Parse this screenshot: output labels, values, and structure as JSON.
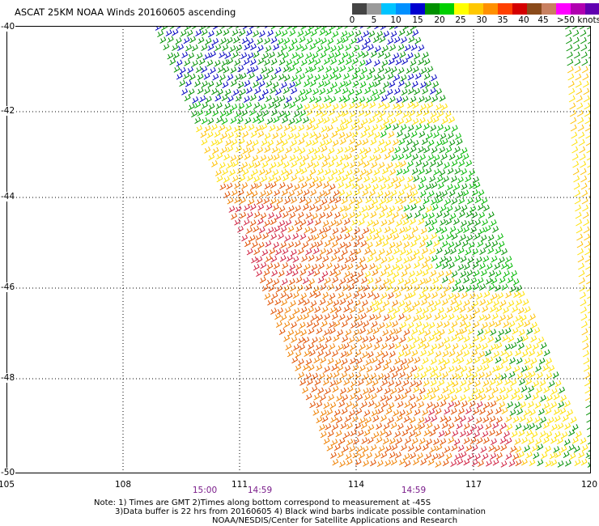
{
  "title": "ASCAT 25KM NOAA Winds 20160605 ascending",
  "legend": {
    "labels": [
      "0",
      "5",
      "10",
      "15",
      "20",
      "25",
      "30",
      "35",
      "40",
      "45",
      ">50 knots"
    ],
    "colors": [
      "#444444",
      "#9a9a9a",
      "#00c4ff",
      "#0090ff",
      "#0000d0",
      "#009000",
      "#00d000",
      "#ffff00",
      "#ffc800",
      "#ff9000",
      "#ff4000",
      "#d40000",
      "#8a4a1a",
      "#c88060",
      "#ff00ff",
      "#b000b0",
      "#6000b0"
    ]
  },
  "axes": {
    "lat_labels": [
      "-40",
      "-42",
      "-44",
      "-46",
      "-48",
      "-50"
    ],
    "lon_labels": [
      "105",
      "108",
      "111",
      "114",
      "117",
      "120"
    ]
  },
  "times": [
    "15:00",
    "14:59",
    "14:59"
  ],
  "notes": {
    "line1": "Note: 1) Times are GMT 2)Times along bottom correspond to measurement at -45S",
    "line2": "3)Data buffer is 22 hrs from 20160605 4) Black wind barbs indicate possible contamination",
    "line3": "NOAA/NESDIS/Center for Satellite Applications and Research"
  },
  "map": {
    "swath_colors": [
      "#0000c0",
      "#009000",
      "#00b800",
      "#ffe000",
      "#ffc000",
      "#f08000",
      "#e05000",
      "#d02040",
      "#a0b000"
    ]
  }
}
